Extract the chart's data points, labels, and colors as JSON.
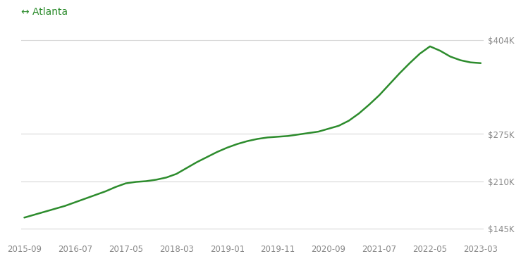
{
  "title": "Atlanta",
  "line_color": "#2d8c2d",
  "background_color": "#ffffff",
  "grid_color": "#d8d8d8",
  "x_tick_labels": [
    "2015-09",
    "2016-07",
    "2017-05",
    "2018-03",
    "2019-01",
    "2019-11",
    "2020-09",
    "2021-07",
    "2022-05",
    "2023-03"
  ],
  "y_tick_labels": [
    "$145K",
    "$210K",
    "$275K",
    "$404K"
  ],
  "y_tick_values": [
    145000,
    210000,
    275000,
    404000
  ],
  "ylim": [
    128000,
    422000
  ],
  "data": {
    "dates": [
      "2015-09",
      "2015-11",
      "2016-01",
      "2016-03",
      "2016-05",
      "2016-07",
      "2016-09",
      "2016-11",
      "2017-01",
      "2017-03",
      "2017-05",
      "2017-07",
      "2017-09",
      "2017-11",
      "2018-01",
      "2018-03",
      "2018-05",
      "2018-07",
      "2018-09",
      "2018-11",
      "2019-01",
      "2019-03",
      "2019-05",
      "2019-07",
      "2019-09",
      "2019-11",
      "2020-01",
      "2020-03",
      "2020-05",
      "2020-07",
      "2020-09",
      "2020-11",
      "2021-01",
      "2021-03",
      "2021-05",
      "2021-07",
      "2021-09",
      "2021-11",
      "2022-01",
      "2022-03",
      "2022-05",
      "2022-07",
      "2022-09",
      "2022-11",
      "2023-01",
      "2023-03"
    ],
    "values": [
      160000,
      164000,
      168000,
      172000,
      176000,
      181000,
      186000,
      191000,
      196000,
      202000,
      207000,
      209000,
      210000,
      212000,
      215000,
      220000,
      228000,
      236000,
      243000,
      250000,
      256000,
      261000,
      265000,
      268000,
      270000,
      271000,
      272000,
      274000,
      276000,
      278000,
      282000,
      286000,
      293000,
      303000,
      315000,
      328000,
      343000,
      358000,
      372000,
      385000,
      395000,
      389000,
      381000,
      376000,
      373000,
      372000
    ]
  }
}
